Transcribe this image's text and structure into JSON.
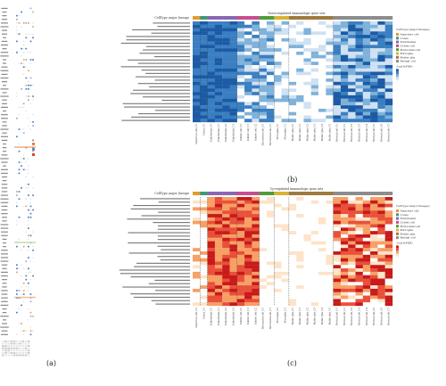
{
  "figure": {
    "panels": [
      {
        "id": "a",
        "label": "(a)"
      },
      {
        "id": "b",
        "label": "(b)",
        "title": "Down-regulated immunologic gene sets",
        "annotation_header": "CellType_major_lineage",
        "legend_title": "CellType (major lineage)",
        "scale_title": "-log10(FDR)",
        "colormap": [
          "#ffffff",
          "#cfe1f2",
          "#7fb2da",
          "#3a7fc1",
          "#1c5aa5"
        ]
      },
      {
        "id": "c",
        "label": "(c)",
        "title": "Up-regulated immunologic gene sets",
        "annotation_header": "CellType_major_lineage",
        "legend_title": "CellType (major lineage)",
        "scale_title": "-log10(FDR)",
        "colormap": [
          "#ffffff",
          "#fde3c8",
          "#f7a066",
          "#e9503a",
          "#c81a1a"
        ]
      }
    ],
    "cell_types": [
      {
        "name": "Amacrine cell",
        "color": "#e59a2f"
      },
      {
        "name": "Cones",
        "color": "#3d9a77"
      },
      {
        "name": "Endothelial",
        "color": "#8a66b4"
      },
      {
        "name": "Goblet cell",
        "color": "#c94d8f"
      },
      {
        "name": "Horizontal cell",
        "color": "#4f9d3c"
      },
      {
        "name": "Microglia",
        "color": "#d8b437"
      },
      {
        "name": "Muller glia",
        "color": "#9e7a3f"
      },
      {
        "name": "Retinal cell",
        "color": "#8c8c8c"
      }
    ],
    "columns": [
      "Amacrine cell_C0",
      "Cones_C0",
      "Endothelial_C0",
      "Endothelial_C1",
      "Endothelial_C2",
      "Endothelial_C3",
      "Goblet cell_C0",
      "Goblet cell_C1",
      "Goblet cell_C2",
      "Horizontal cell_C0",
      "Horizontal cell_C1",
      "Microglia_C0",
      "Microglia_C1",
      "Muller glia_C0",
      "Muller glia_C1",
      "Muller glia_C2",
      "Muller glia_C3",
      "Muller glia_C4",
      "Muller glia_C5",
      "Retinal cell_C0",
      "Retinal cell_C1",
      "Retinal cell_C2",
      "Retinal cell_C3",
      "Retinal cell_C4",
      "Retinal cell_C5",
      "Retinal cell_C6",
      "Retinal cell_C7"
    ],
    "column_groups": [
      0,
      1,
      2,
      2,
      2,
      2,
      3,
      3,
      3,
      4,
      4,
      5,
      5,
      6,
      6,
      6,
      6,
      6,
      6,
      7,
      7,
      7,
      7,
      7,
      7,
      7,
      7
    ]
  }
}
